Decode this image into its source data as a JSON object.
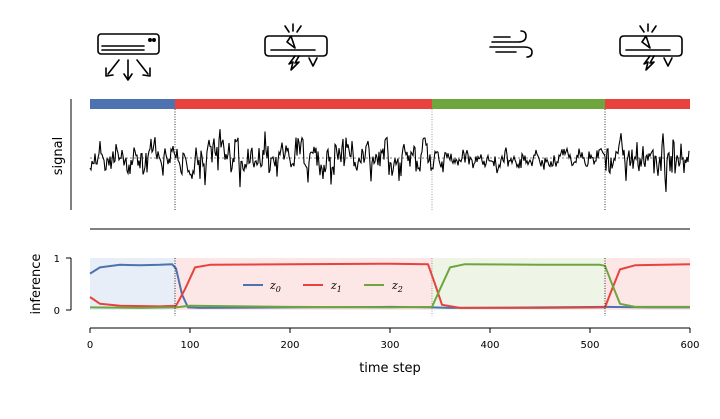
{
  "chart_data": [
    {
      "type": "line",
      "panel": "signal",
      "ylabel": "signal",
      "xlim": [
        0,
        600
      ],
      "segments": [
        {
          "state": "z0",
          "start": 0,
          "end": 85
        },
        {
          "state": "z1",
          "start": 85,
          "end": 342
        },
        {
          "state": "z2",
          "start": 342,
          "end": 515
        },
        {
          "state": "z1",
          "start": 515,
          "end": 600
        }
      ],
      "change_points": [
        85,
        342,
        515
      ],
      "segment_icons": [
        {
          "x": 28,
          "icon": "air-conditioner-cooling-icon"
        },
        {
          "x": 205,
          "icon": "air-conditioner-broken-icon"
        },
        {
          "x": 420,
          "icon": "wind-icon"
        },
        {
          "x": 568,
          "icon": "air-conditioner-broken-icon"
        }
      ],
      "mean_line": "dashed",
      "series": [
        {
          "generated": "noise-around-mean",
          "n": 600
        }
      ]
    },
    {
      "type": "line",
      "panel": "inference",
      "xlabel": "time step",
      "ylabel": "inference",
      "xlim": [
        0,
        600
      ],
      "ylim": [
        0,
        1
      ],
      "xticks": [
        0,
        100,
        200,
        300,
        400,
        500,
        600
      ],
      "yticks": [
        0,
        1
      ],
      "change_points": [
        85,
        342,
        515
      ],
      "legend": {
        "position": "center",
        "entries": [
          "z",
          "z",
          "z"
        ],
        "subscripts": [
          "0",
          "1",
          "2"
        ]
      },
      "series": [
        {
          "id": "z0",
          "color": "#4c72b0",
          "points": [
            [
              0,
              0.7
            ],
            [
              10,
              0.82
            ],
            [
              30,
              0.87
            ],
            [
              50,
              0.86
            ],
            [
              70,
              0.87
            ],
            [
              82,
              0.88
            ],
            [
              86,
              0.8
            ],
            [
              92,
              0.3
            ],
            [
              98,
              0.05
            ],
            [
              110,
              0.04
            ],
            [
              200,
              0.05
            ],
            [
              300,
              0.06
            ],
            [
              342,
              0.05
            ],
            [
              360,
              0.04
            ],
            [
              450,
              0.05
            ],
            [
              515,
              0.06
            ],
            [
              560,
              0.05
            ],
            [
              600,
              0.05
            ]
          ]
        },
        {
          "id": "z1",
          "color": "#e8413e",
          "points": [
            [
              0,
              0.25
            ],
            [
              10,
              0.12
            ],
            [
              30,
              0.08
            ],
            [
              70,
              0.07
            ],
            [
              86,
              0.08
            ],
            [
              95,
              0.4
            ],
            [
              105,
              0.82
            ],
            [
              120,
              0.87
            ],
            [
              200,
              0.88
            ],
            [
              300,
              0.89
            ],
            [
              338,
              0.88
            ],
            [
              345,
              0.5
            ],
            [
              352,
              0.1
            ],
            [
              370,
              0.04
            ],
            [
              450,
              0.04
            ],
            [
              515,
              0.05
            ],
            [
              520,
              0.3
            ],
            [
              530,
              0.78
            ],
            [
              545,
              0.86
            ],
            [
              600,
              0.88
            ]
          ]
        },
        {
          "id": "z2",
          "color": "#6ea63d",
          "points": [
            [
              0,
              0.05
            ],
            [
              50,
              0.04
            ],
            [
              86,
              0.05
            ],
            [
              100,
              0.08
            ],
            [
              200,
              0.06
            ],
            [
              300,
              0.05
            ],
            [
              342,
              0.06
            ],
            [
              350,
              0.4
            ],
            [
              360,
              0.82
            ],
            [
              375,
              0.88
            ],
            [
              450,
              0.87
            ],
            [
              510,
              0.87
            ],
            [
              515,
              0.85
            ],
            [
              522,
              0.5
            ],
            [
              530,
              0.12
            ],
            [
              545,
              0.06
            ],
            [
              600,
              0.06
            ]
          ]
        }
      ]
    }
  ],
  "legend_labels": {
    "z0": "z",
    "z1": "z",
    "z2": "z",
    "z0_sub": "0",
    "z1_sub": "1",
    "z2_sub": "2"
  },
  "axes": {
    "signal_ylabel": "signal",
    "inference_ylabel": "inference",
    "xlabel": "time step",
    "xticks": [
      "0",
      "100",
      "200",
      "300",
      "400",
      "500",
      "600"
    ],
    "yticks": [
      "0",
      "1"
    ]
  },
  "colors": {
    "z0": "#4c72b0",
    "z1": "#e8413e",
    "z2": "#6ea63d",
    "z0_fill": "#e8eef7",
    "z1_fill": "#fce6e6",
    "z2_fill": "#eef5e6"
  }
}
